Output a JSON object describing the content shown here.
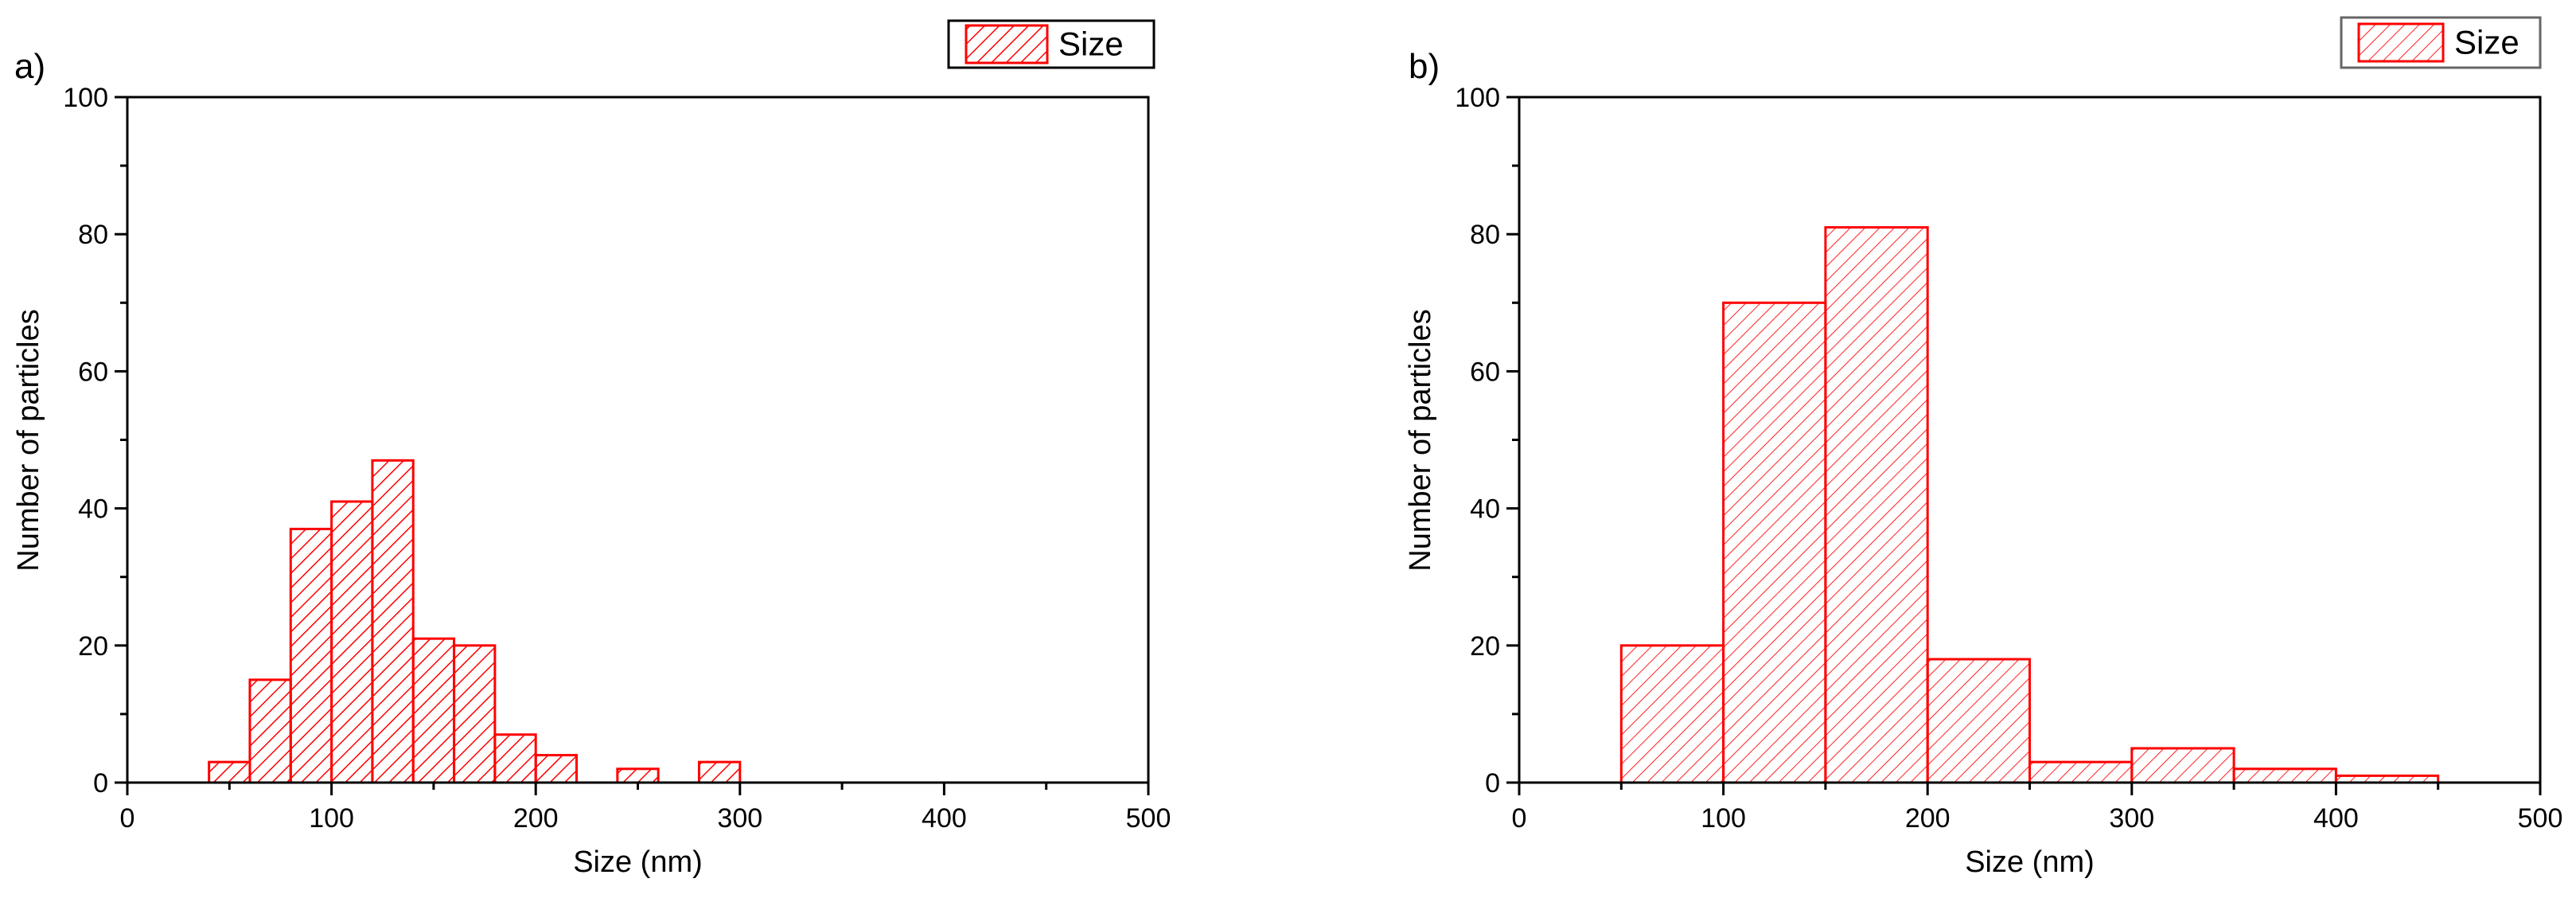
{
  "chart_data": [
    {
      "type": "bar",
      "panel_label": "a)",
      "xlabel": "Size (nm)",
      "ylabel": "Number of particles",
      "xlim": [
        0,
        500
      ],
      "ylim": [
        0,
        100
      ],
      "xticks": [
        0,
        100,
        200,
        300,
        400,
        500
      ],
      "yticks": [
        0,
        20,
        40,
        60,
        80,
        100
      ],
      "legend": {
        "placement": "top-right-outside",
        "entries": [
          "Size"
        ]
      },
      "color": "#ff0000",
      "fill": "diagonal-hatch",
      "bins": [
        {
          "x0": 40,
          "x1": 60,
          "value": 3
        },
        {
          "x0": 60,
          "x1": 80,
          "value": 15
        },
        {
          "x0": 80,
          "x1": 100,
          "value": 37
        },
        {
          "x0": 100,
          "x1": 120,
          "value": 41
        },
        {
          "x0": 120,
          "x1": 140,
          "value": 47
        },
        {
          "x0": 140,
          "x1": 160,
          "value": 21
        },
        {
          "x0": 160,
          "x1": 180,
          "value": 20
        },
        {
          "x0": 180,
          "x1": 200,
          "value": 7
        },
        {
          "x0": 200,
          "x1": 220,
          "value": 4
        },
        {
          "x0": 240,
          "x1": 260,
          "value": 2
        },
        {
          "x0": 280,
          "x1": 300,
          "value": 3
        }
      ]
    },
    {
      "type": "bar",
      "panel_label": "b)",
      "xlabel": "Size (nm)",
      "ylabel": "Number of particles",
      "xlim": [
        0,
        500
      ],
      "ylim": [
        0,
        100
      ],
      "xticks": [
        0,
        100,
        200,
        300,
        400,
        500
      ],
      "yticks": [
        0,
        20,
        40,
        60,
        80,
        100
      ],
      "legend": {
        "placement": "top-right-outside",
        "entries": [
          "Size"
        ]
      },
      "color": "#ff0000",
      "fill": "diagonal-hatch",
      "bins": [
        {
          "x0": 50,
          "x1": 100,
          "value": 20
        },
        {
          "x0": 100,
          "x1": 150,
          "value": 70
        },
        {
          "x0": 150,
          "x1": 200,
          "value": 81
        },
        {
          "x0": 200,
          "x1": 250,
          "value": 18
        },
        {
          "x0": 250,
          "x1": 300,
          "value": 3
        },
        {
          "x0": 300,
          "x1": 350,
          "value": 5
        },
        {
          "x0": 350,
          "x1": 400,
          "value": 2
        },
        {
          "x0": 400,
          "x1": 450,
          "value": 1
        }
      ]
    }
  ]
}
